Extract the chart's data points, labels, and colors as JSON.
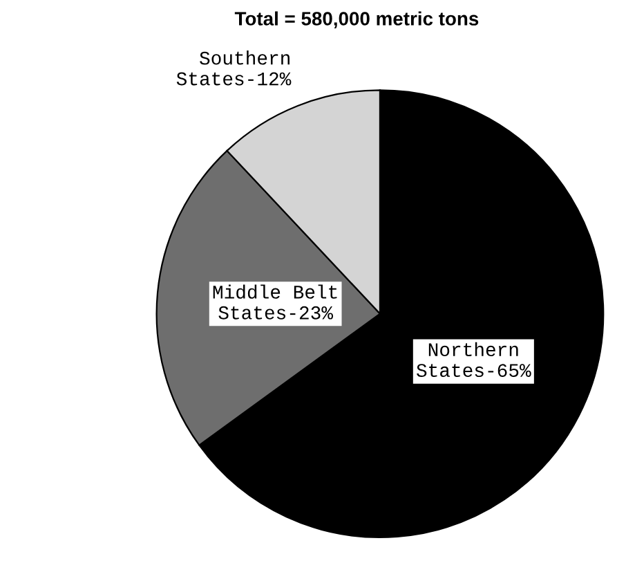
{
  "chart_data": {
    "type": "pie",
    "title": "Total = 580,000 metric tons",
    "categories": [
      "Northern States-65%",
      "Middle Belt States-23%",
      "Southern States-12%"
    ],
    "values": [
      65,
      23,
      12
    ],
    "colors": [
      "#000000",
      "#6e6e6e",
      "#d4d4d4"
    ]
  }
}
